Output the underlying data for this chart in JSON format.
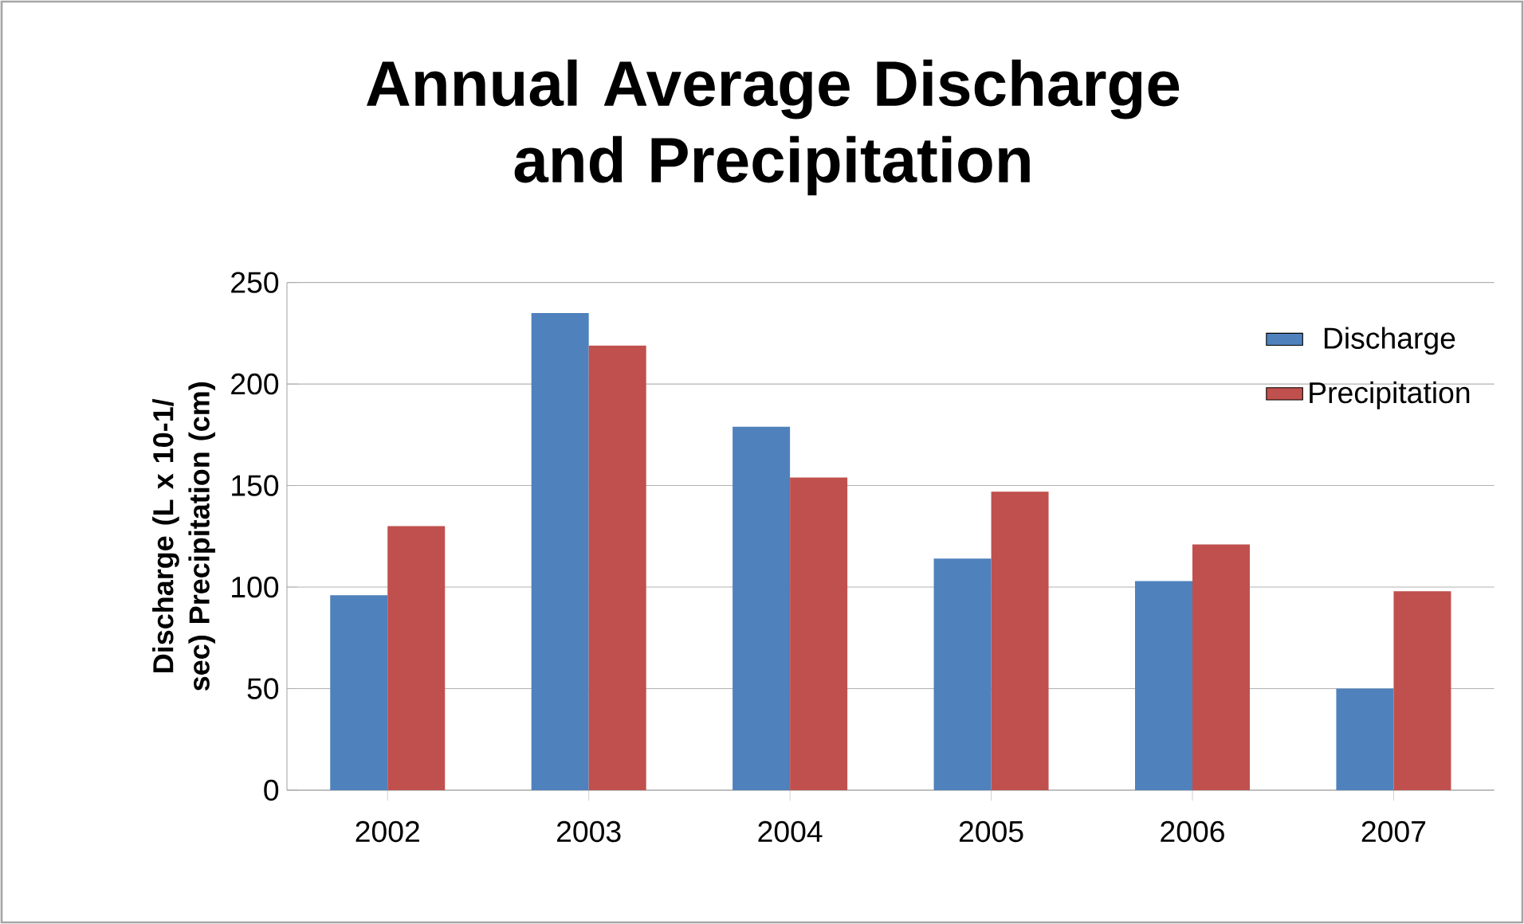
{
  "chart_data": {
    "type": "bar",
    "title": "Annual Average Discharge and Precipitation",
    "ylabel": "Discharge (L x 10-1/ sec) Precipitation (cm)",
    "categories": [
      "2002",
      "2003",
      "2004",
      "2005",
      "2006",
      "2007"
    ],
    "series": [
      {
        "name": "Discharge",
        "color": "#4f81bd",
        "values": [
          96,
          235,
          179,
          114,
          103,
          50
        ]
      },
      {
        "name": "Precipitation",
        "color": "#c0504d",
        "values": [
          130,
          219,
          154,
          147,
          121,
          98
        ]
      }
    ],
    "ylim": [
      0,
      250
    ],
    "yticks": [
      0,
      50,
      100,
      150,
      200,
      250
    ],
    "grid": "y",
    "legend": "top right"
  }
}
